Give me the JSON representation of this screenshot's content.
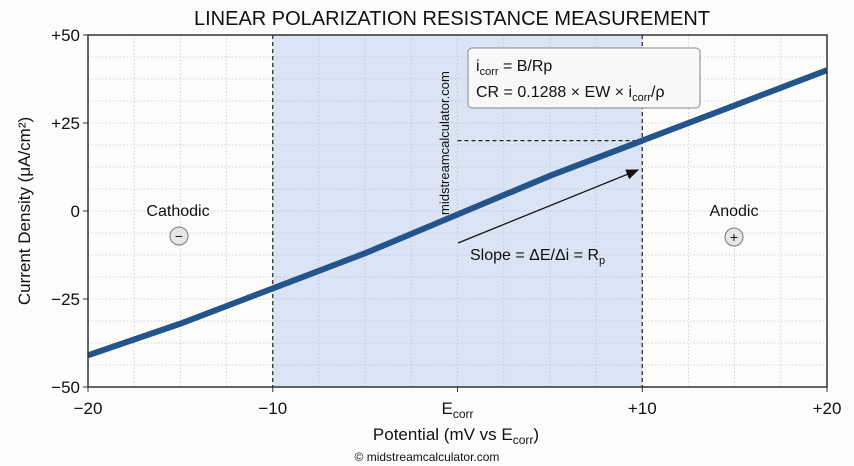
{
  "chart_data": {
    "type": "line",
    "title": "LINEAR POLARIZATION RESISTANCE MEASUREMENT",
    "xlabel": "Potential (mV vs E",
    "xlabel_sub": "corr",
    "xlabel_end": ")",
    "ylabel": "Current Density (μA/cm²)",
    "xlim": [
      -20,
      20
    ],
    "ylim": [
      -50,
      50
    ],
    "xticks": [
      {
        "v": -20,
        "label": "−20"
      },
      {
        "v": -10,
        "label": "−10"
      },
      {
        "v": 0,
        "label": "E",
        "sub": "corr"
      },
      {
        "v": 10,
        "label": "+10"
      },
      {
        "v": 20,
        "label": "+20"
      }
    ],
    "yticks": [
      {
        "v": 50,
        "label": "+50"
      },
      {
        "v": 25,
        "label": "+25"
      },
      {
        "v": 0,
        "label": "0"
      },
      {
        "v": -25,
        "label": "−25"
      },
      {
        "v": -50,
        "label": "−50"
      }
    ],
    "grid": true,
    "series": [
      {
        "color": "#23558c",
        "x": [
          -20,
          -15,
          -10,
          -5,
          0,
          5,
          10,
          15,
          20
        ],
        "y": [
          -41,
          -32,
          -22,
          -12,
          -1,
          10,
          20,
          30,
          40
        ]
      }
    ],
    "shaded_region": {
      "x": [
        -10,
        10
      ],
      "color": "#d3dff2"
    },
    "annotations": {
      "cathodic": "Cathodic",
      "anodic": "Anodic",
      "minus_symbol": "−",
      "plus_symbol": "+",
      "slope": "Slope = ΔE/Δi = R",
      "slope_sub": "p",
      "formula1_a": "i",
      "formula1_sub": "corr",
      "formula1_b": " = B/Rp",
      "formula2_a": "CR = 0.1288 × EW × i",
      "formula2_sub": "corr",
      "formula2_b": "/ρ",
      "watermark": "midstreamcalculator.com"
    },
    "footer": "© midstreamcalculator.com"
  }
}
